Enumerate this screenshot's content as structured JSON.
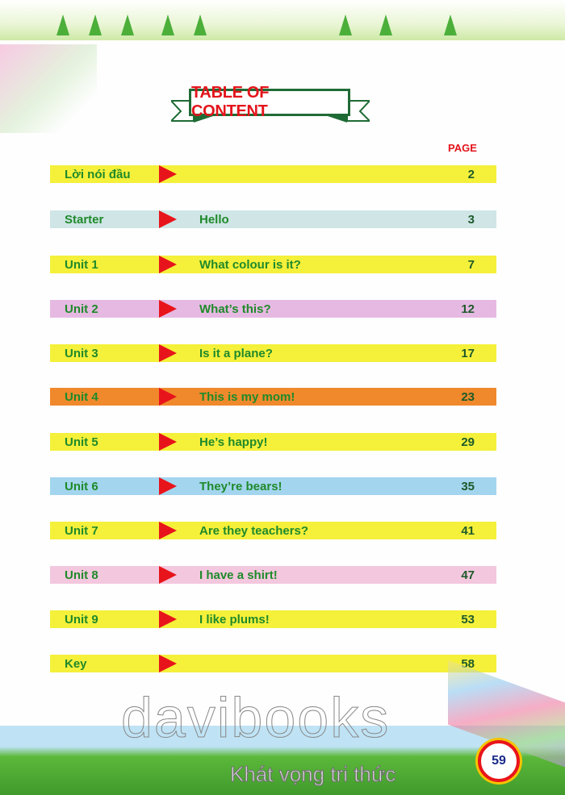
{
  "header": {
    "title": "TABLE OF CONTENT",
    "page_column": "PAGE"
  },
  "rows": [
    {
      "label": "Lời nói đầu",
      "title": "",
      "page": "2",
      "color": "#f5f03a"
    },
    {
      "label": "Starter",
      "title": "Hello",
      "page": "3",
      "color": "#cfe5e6"
    },
    {
      "label": "Unit 1",
      "title": "What colour is it?",
      "page": "7",
      "color": "#f5f03a"
    },
    {
      "label": "Unit 2",
      "title": "What’s this?",
      "page": "12",
      "color": "#e6b9e2"
    },
    {
      "label": "Unit 3",
      "title": "Is it a plane?",
      "page": "17",
      "color": "#f5f03a"
    },
    {
      "label": "Unit 4",
      "title": "This is my mom!",
      "page": "23",
      "color": "#f0892c"
    },
    {
      "label": "Unit 5",
      "title": "He’s happy!",
      "page": "29",
      "color": "#f5f03a"
    },
    {
      "label": "Unit 6",
      "title": "They’re bears!",
      "page": "35",
      "color": "#a3d5ef"
    },
    {
      "label": "Unit 7",
      "title": "Are they teachers?",
      "page": "41",
      "color": "#f5f03a"
    },
    {
      "label": "Unit 8",
      "title": "I have a shirt!",
      "page": "47",
      "color": "#f3c7de"
    },
    {
      "label": "Unit 9",
      "title": "I like plums!",
      "page": "53",
      "color": "#f5f03a"
    },
    {
      "label": "Key",
      "title": "",
      "page": "58",
      "color": "#f5f03a"
    }
  ],
  "footer": {
    "page_number": "59",
    "watermark": "davibooks",
    "slogan": "Khát vọng tri thức"
  },
  "colors": {
    "title_red": "#e3141b",
    "text_green": "#1f8a2a",
    "arrow_red": "#e8141b"
  }
}
